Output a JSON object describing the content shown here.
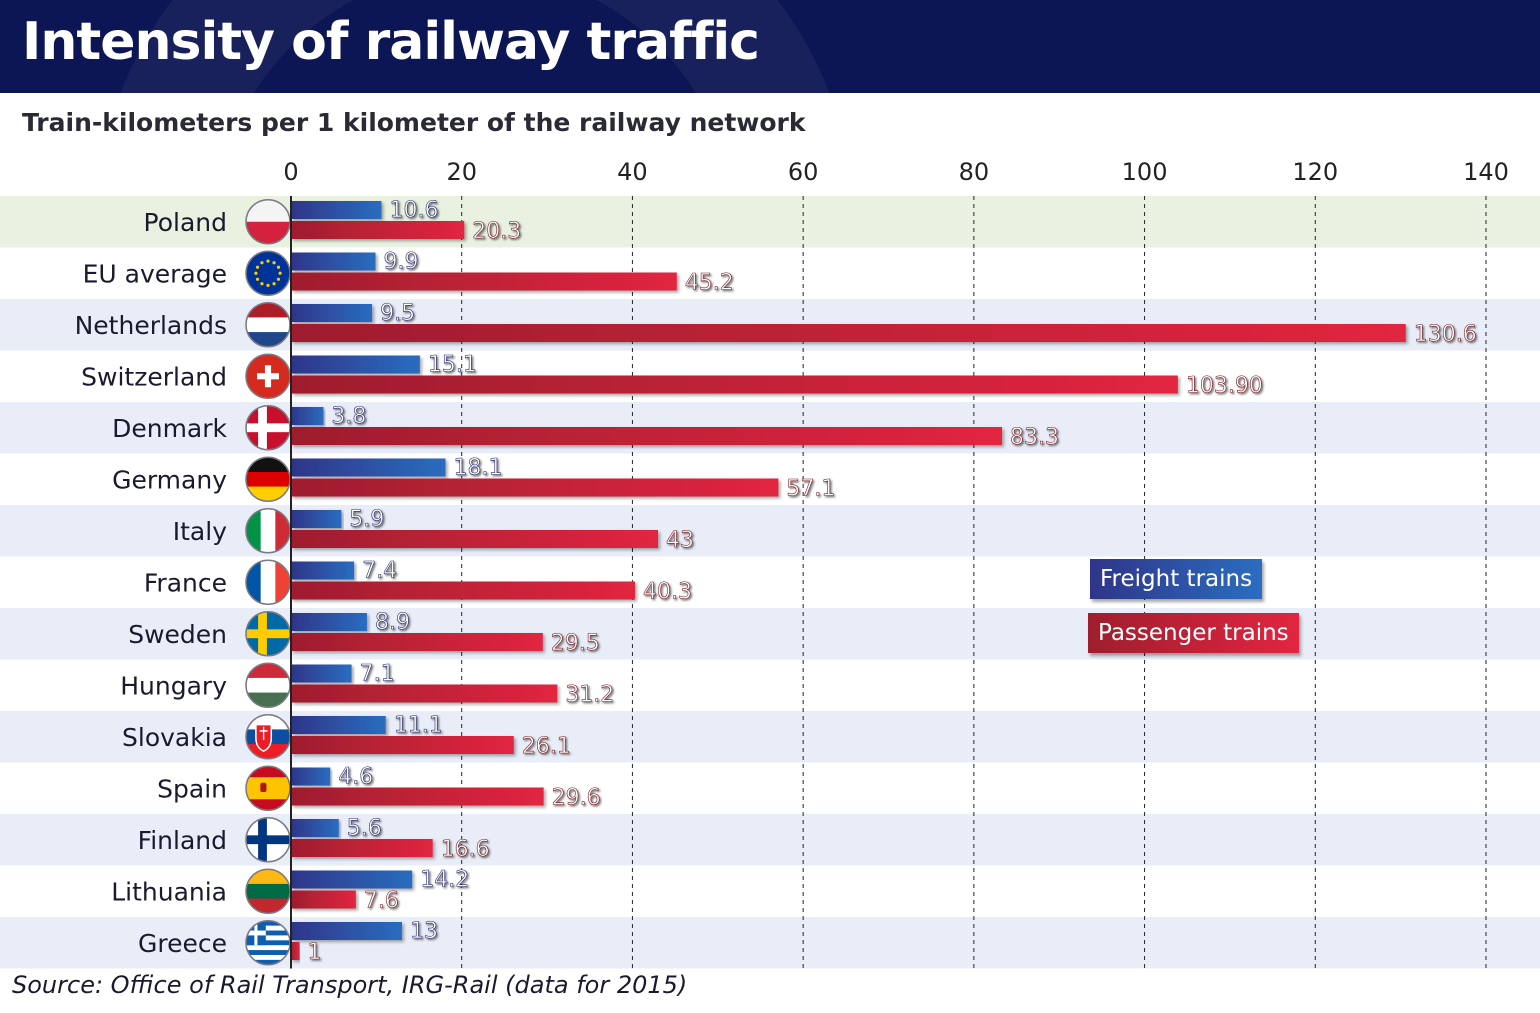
{
  "title": "Intensity of railway traffic",
  "subtitle": "Train-kilometers per 1 kilometer of the railway network",
  "source": "Source: Office of Rail Transport, IRG-Rail (data for 2015)",
  "colors": {
    "header_bg": "#0d1654",
    "freight_dark": "#2f3588",
    "freight_light": "#2b6dc0",
    "passenger_dark": "#9e1e2e",
    "passenger_light": "#e22540",
    "row_stripe": "#e8edf8",
    "highlight_row": "#e9f2e1"
  },
  "chart_data": {
    "type": "bar",
    "orientation": "horizontal",
    "title": "Intensity of railway traffic",
    "subtitle": "Train-kilometers per 1 kilometer of the railway network",
    "categories": [
      "Poland",
      "EU average",
      "Netherlands",
      "Switzerland",
      "Denmark",
      "Germany",
      "Italy",
      "France",
      "Sweden",
      "Hungary",
      "Slovakia",
      "Spain",
      "Finland",
      "Lithuania",
      "Greece"
    ],
    "flags": [
      "poland-flag-icon",
      "eu-flag-icon",
      "netherlands-flag-icon",
      "switzerland-flag-icon",
      "denmark-flag-icon",
      "germany-flag-icon",
      "italy-flag-icon",
      "france-flag-icon",
      "sweden-flag-icon",
      "hungary-flag-icon",
      "slovakia-flag-icon",
      "spain-flag-icon",
      "finland-flag-icon",
      "lithuania-flag-icon",
      "greece-flag-icon"
    ],
    "series": [
      {
        "name": "Freight trains",
        "values": [
          10.6,
          9.9,
          9.5,
          15.1,
          3.8,
          18.1,
          5.9,
          7.4,
          8.9,
          7.1,
          11.1,
          4.6,
          5.6,
          14.2,
          13
        ],
        "labels": [
          "10.6",
          "9.9",
          "9.5",
          "15.1",
          "3.8",
          "18.1",
          "5.9",
          "7.4",
          "8.9",
          "7.1",
          "11.1",
          "4.6",
          "5.6",
          "14.2",
          "13"
        ]
      },
      {
        "name": "Passenger trains",
        "values": [
          20.3,
          45.2,
          130.6,
          103.9,
          83.3,
          57.1,
          43,
          40.3,
          29.5,
          31.2,
          26.1,
          29.6,
          16.6,
          7.6,
          1
        ],
        "labels": [
          "20.3",
          "45.2",
          "130.6",
          "103.90",
          "83.3",
          "57.1",
          "43",
          "40.3",
          "29.5",
          "31.2",
          "26.1",
          "29.6",
          "16.6",
          "7.6",
          "1"
        ]
      }
    ],
    "xlim": [
      0,
      140
    ],
    "xticks": [
      0,
      20,
      40,
      60,
      80,
      100,
      120,
      140
    ],
    "xtick_labels": [
      "0",
      "20",
      "40",
      "60",
      "80",
      "100",
      "120",
      "140"
    ],
    "xaxis_position": "top",
    "grid": "vertical dashed",
    "legend": [
      "Freight trains",
      "Passenger trains"
    ],
    "legend_placement": "center-right",
    "highlighted_category": "Poland"
  }
}
